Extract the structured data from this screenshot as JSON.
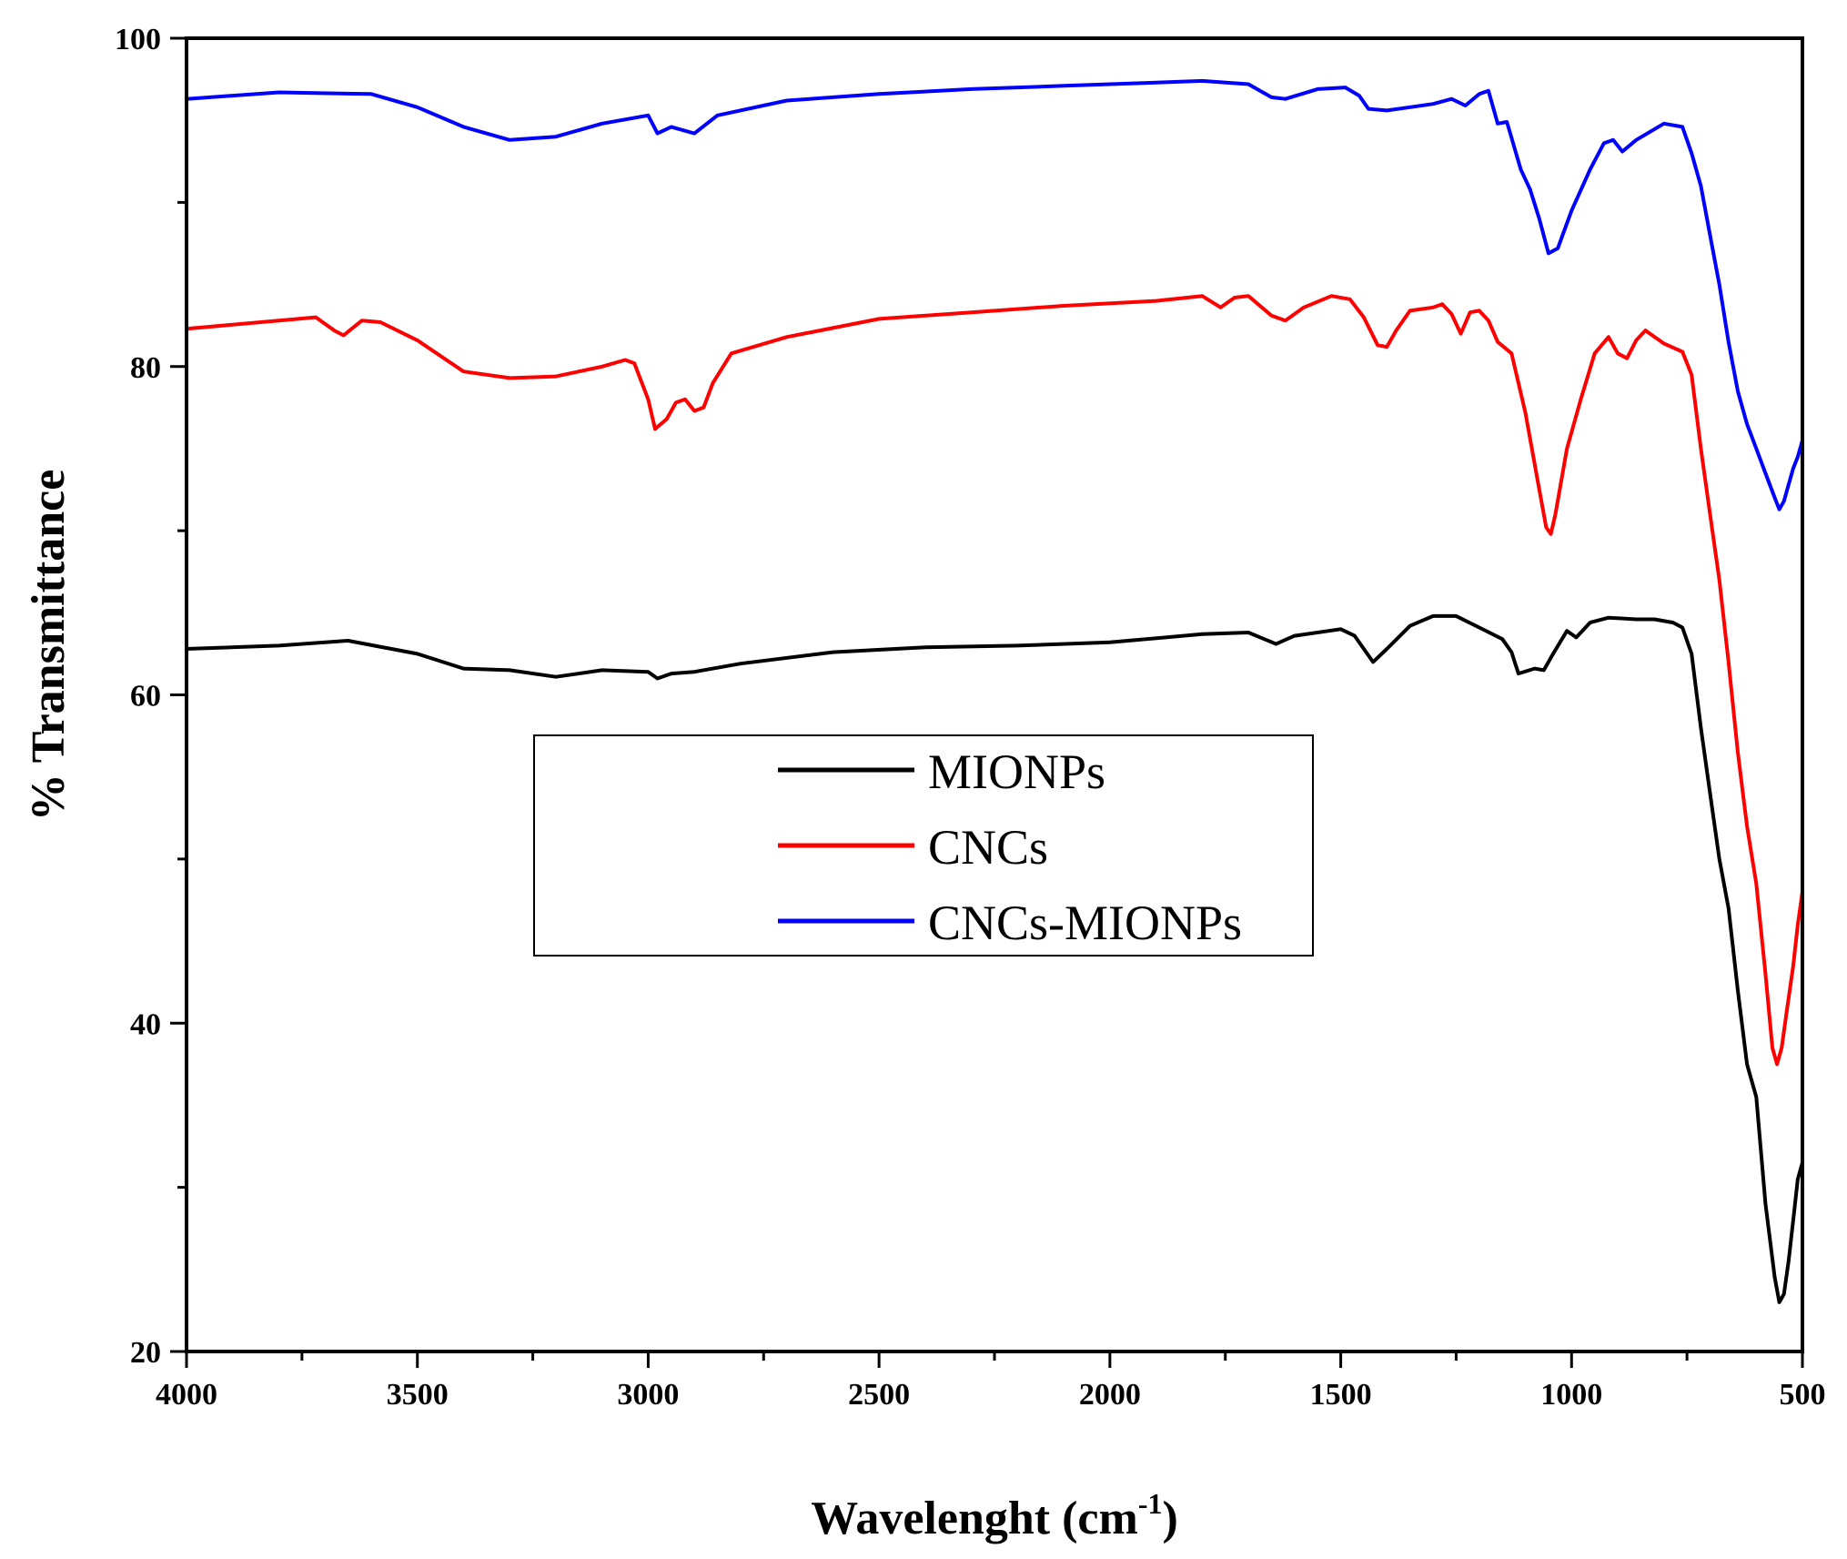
{
  "chart_data": {
    "type": "line",
    "title": "",
    "xlabel": "Wavelenght (cm",
    "xlabel_superscript": "-1",
    "xlabel_suffix": ")",
    "ylabel": "% Transmittance",
    "xlim": [
      4000,
      500
    ],
    "ylim": [
      20,
      100
    ],
    "x_ticks": [
      4000,
      3500,
      3000,
      2500,
      2000,
      1500,
      1000,
      500
    ],
    "y_ticks": [
      20,
      40,
      60,
      80,
      100
    ],
    "grid": false,
    "legend_position": "center-left",
    "series": [
      {
        "name": "MIONPs",
        "color": "#000000",
        "points": [
          [
            4000,
            62.8
          ],
          [
            3800,
            63.0
          ],
          [
            3650,
            63.3
          ],
          [
            3500,
            62.5
          ],
          [
            3400,
            61.6
          ],
          [
            3300,
            61.5
          ],
          [
            3200,
            61.1
          ],
          [
            3100,
            61.5
          ],
          [
            3000,
            61.4
          ],
          [
            2980,
            61.0
          ],
          [
            2950,
            61.3
          ],
          [
            2900,
            61.4
          ],
          [
            2800,
            61.9
          ],
          [
            2600,
            62.6
          ],
          [
            2400,
            62.9
          ],
          [
            2200,
            63.0
          ],
          [
            2000,
            63.2
          ],
          [
            1800,
            63.7
          ],
          [
            1700,
            63.8
          ],
          [
            1640,
            63.1
          ],
          [
            1600,
            63.6
          ],
          [
            1500,
            64.0
          ],
          [
            1470,
            63.6
          ],
          [
            1430,
            62.0
          ],
          [
            1400,
            62.8
          ],
          [
            1350,
            64.2
          ],
          [
            1300,
            64.8
          ],
          [
            1250,
            64.8
          ],
          [
            1200,
            64.1
          ],
          [
            1150,
            63.4
          ],
          [
            1130,
            62.6
          ],
          [
            1115,
            61.3
          ],
          [
            1080,
            61.6
          ],
          [
            1060,
            61.5
          ],
          [
            1040,
            62.5
          ],
          [
            1010,
            63.9
          ],
          [
            990,
            63.5
          ],
          [
            960,
            64.4
          ],
          [
            920,
            64.7
          ],
          [
            860,
            64.6
          ],
          [
            820,
            64.6
          ],
          [
            780,
            64.4
          ],
          [
            760,
            64.1
          ],
          [
            740,
            62.5
          ],
          [
            720,
            58.0
          ],
          [
            700,
            54.0
          ],
          [
            680,
            50.0
          ],
          [
            660,
            47.0
          ],
          [
            640,
            42.0
          ],
          [
            620,
            37.5
          ],
          [
            600,
            35.5
          ],
          [
            580,
            29.0
          ],
          [
            560,
            24.5
          ],
          [
            550,
            23.0
          ],
          [
            540,
            23.5
          ],
          [
            530,
            25.5
          ],
          [
            520,
            28.0
          ],
          [
            510,
            30.5
          ],
          [
            500,
            31.5
          ]
        ]
      },
      {
        "name": "CNCs",
        "color": "#ff0000",
        "points": [
          [
            4000,
            82.3
          ],
          [
            3800,
            82.8
          ],
          [
            3720,
            83.0
          ],
          [
            3680,
            82.2
          ],
          [
            3660,
            81.9
          ],
          [
            3620,
            82.8
          ],
          [
            3580,
            82.7
          ],
          [
            3500,
            81.6
          ],
          [
            3400,
            79.7
          ],
          [
            3300,
            79.3
          ],
          [
            3200,
            79.4
          ],
          [
            3100,
            80.0
          ],
          [
            3050,
            80.4
          ],
          [
            3030,
            80.2
          ],
          [
            3000,
            78.0
          ],
          [
            2985,
            76.2
          ],
          [
            2960,
            76.8
          ],
          [
            2940,
            77.8
          ],
          [
            2920,
            78.0
          ],
          [
            2900,
            77.3
          ],
          [
            2880,
            77.5
          ],
          [
            2860,
            79.0
          ],
          [
            2820,
            80.8
          ],
          [
            2700,
            81.8
          ],
          [
            2500,
            82.9
          ],
          [
            2300,
            83.3
          ],
          [
            2100,
            83.7
          ],
          [
            1900,
            84.0
          ],
          [
            1800,
            84.3
          ],
          [
            1760,
            83.6
          ],
          [
            1730,
            84.2
          ],
          [
            1700,
            84.3
          ],
          [
            1650,
            83.1
          ],
          [
            1620,
            82.8
          ],
          [
            1580,
            83.6
          ],
          [
            1520,
            84.3
          ],
          [
            1480,
            84.1
          ],
          [
            1450,
            83.0
          ],
          [
            1420,
            81.3
          ],
          [
            1400,
            81.2
          ],
          [
            1380,
            82.2
          ],
          [
            1350,
            83.4
          ],
          [
            1300,
            83.6
          ],
          [
            1280,
            83.8
          ],
          [
            1260,
            83.2
          ],
          [
            1240,
            82.0
          ],
          [
            1220,
            83.3
          ],
          [
            1200,
            83.4
          ],
          [
            1180,
            82.8
          ],
          [
            1160,
            81.5
          ],
          [
            1130,
            80.8
          ],
          [
            1100,
            77.2
          ],
          [
            1070,
            72.5
          ],
          [
            1055,
            70.2
          ],
          [
            1045,
            69.8
          ],
          [
            1035,
            71.0
          ],
          [
            1010,
            75.0
          ],
          [
            980,
            78.0
          ],
          [
            950,
            80.8
          ],
          [
            920,
            81.8
          ],
          [
            900,
            80.8
          ],
          [
            880,
            80.5
          ],
          [
            860,
            81.6
          ],
          [
            840,
            82.2
          ],
          [
            800,
            81.4
          ],
          [
            760,
            80.9
          ],
          [
            740,
            79.5
          ],
          [
            720,
            75.0
          ],
          [
            700,
            71.0
          ],
          [
            680,
            67.0
          ],
          [
            660,
            62.0
          ],
          [
            640,
            56.5
          ],
          [
            620,
            52.0
          ],
          [
            600,
            48.5
          ],
          [
            580,
            43.0
          ],
          [
            565,
            38.5
          ],
          [
            555,
            37.5
          ],
          [
            545,
            38.5
          ],
          [
            535,
            40.5
          ],
          [
            520,
            43.5
          ],
          [
            510,
            46.0
          ],
          [
            500,
            48.0
          ]
        ]
      },
      {
        "name": "CNCs-MIONPs",
        "color": "#0000ff",
        "points": [
          [
            4000,
            96.3
          ],
          [
            3800,
            96.7
          ],
          [
            3600,
            96.6
          ],
          [
            3500,
            95.8
          ],
          [
            3400,
            94.6
          ],
          [
            3300,
            93.8
          ],
          [
            3200,
            94.0
          ],
          [
            3100,
            94.8
          ],
          [
            3000,
            95.3
          ],
          [
            2980,
            94.2
          ],
          [
            2950,
            94.6
          ],
          [
            2900,
            94.2
          ],
          [
            2850,
            95.3
          ],
          [
            2700,
            96.2
          ],
          [
            2500,
            96.6
          ],
          [
            2300,
            96.9
          ],
          [
            2100,
            97.1
          ],
          [
            1900,
            97.3
          ],
          [
            1800,
            97.4
          ],
          [
            1700,
            97.2
          ],
          [
            1650,
            96.4
          ],
          [
            1620,
            96.3
          ],
          [
            1550,
            96.9
          ],
          [
            1490,
            97.0
          ],
          [
            1460,
            96.5
          ],
          [
            1440,
            95.7
          ],
          [
            1400,
            95.6
          ],
          [
            1350,
            95.8
          ],
          [
            1300,
            96.0
          ],
          [
            1260,
            96.3
          ],
          [
            1230,
            95.9
          ],
          [
            1200,
            96.6
          ],
          [
            1180,
            96.8
          ],
          [
            1160,
            94.8
          ],
          [
            1140,
            94.9
          ],
          [
            1110,
            92.0
          ],
          [
            1090,
            90.8
          ],
          [
            1070,
            89.0
          ],
          [
            1050,
            86.9
          ],
          [
            1030,
            87.2
          ],
          [
            1000,
            89.5
          ],
          [
            960,
            92.0
          ],
          [
            930,
            93.6
          ],
          [
            910,
            93.8
          ],
          [
            890,
            93.1
          ],
          [
            860,
            93.8
          ],
          [
            800,
            94.8
          ],
          [
            760,
            94.6
          ],
          [
            740,
            93.0
          ],
          [
            720,
            91.0
          ],
          [
            700,
            88.0
          ],
          [
            680,
            85.0
          ],
          [
            660,
            81.5
          ],
          [
            640,
            78.5
          ],
          [
            620,
            76.5
          ],
          [
            600,
            75.0
          ],
          [
            580,
            73.5
          ],
          [
            560,
            72.0
          ],
          [
            550,
            71.3
          ],
          [
            540,
            71.8
          ],
          [
            530,
            72.8
          ],
          [
            520,
            73.8
          ],
          [
            510,
            74.5
          ],
          [
            500,
            75.5
          ]
        ]
      }
    ]
  }
}
